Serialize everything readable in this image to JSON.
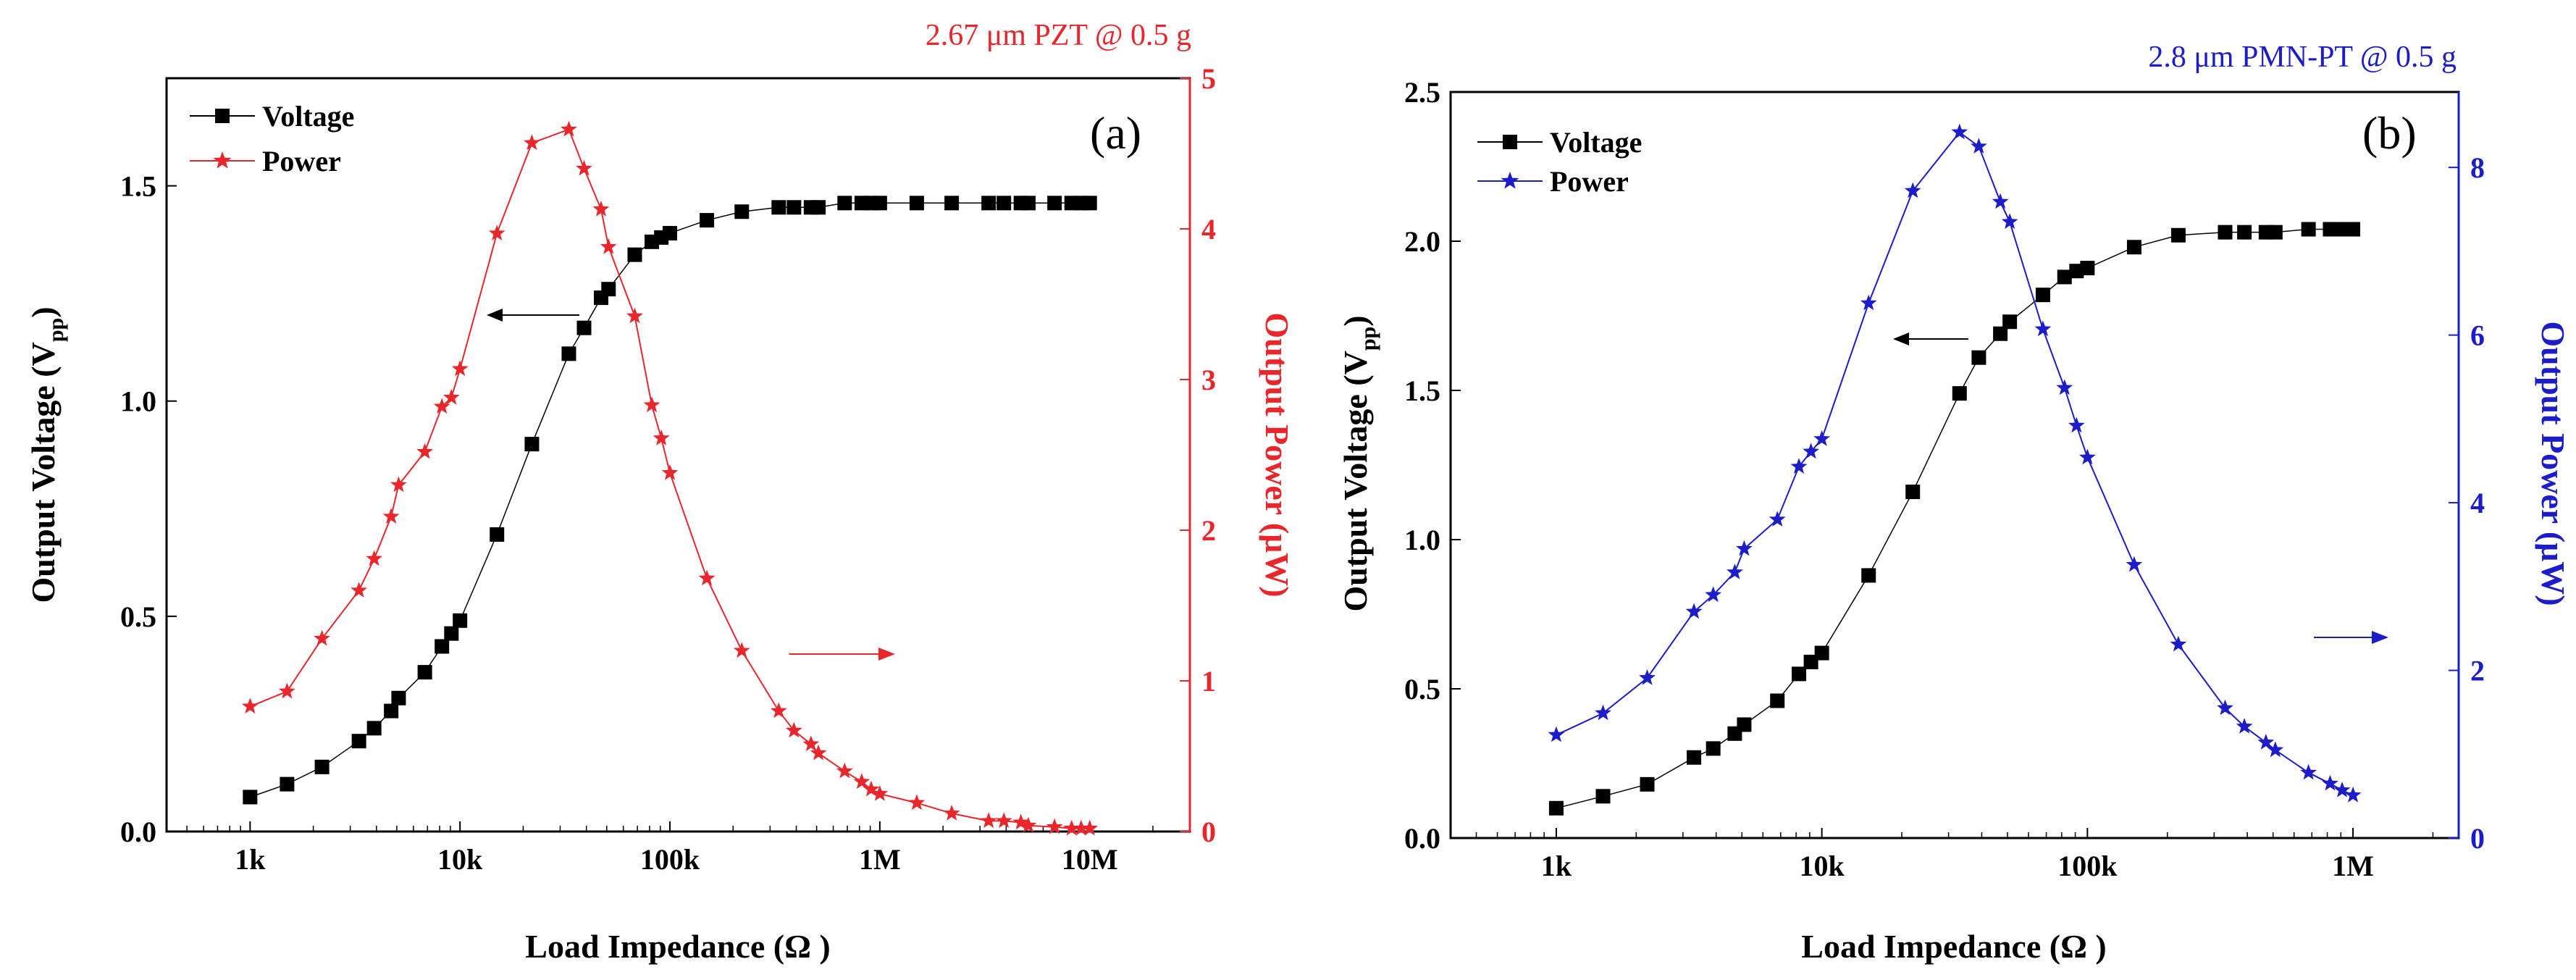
{
  "colors": {
    "voltage": "#000000",
    "power_a": "#e8262c",
    "power_b": "#1c1cc8"
  },
  "chart_data": [
    {
      "type": "line",
      "panel_label": "(a)",
      "title": "2.67 μm PZT @ 0.5 g",
      "xlabel": "Load Impedance (Ω )",
      "ylabel_left": "Output Voltage (V",
      "ylabel_left_sub": "pp",
      "ylabel_left_close": ")",
      "ylabel_right": "Output Power (μW)",
      "xscale": "log",
      "xlim": [
        400,
        30000000
      ],
      "ylim_left": [
        0,
        1.75
      ],
      "ylim_right": [
        0,
        5
      ],
      "x_ticks": [
        {
          "value": 1000,
          "label": "1k"
        },
        {
          "value": 10000,
          "label": "10k"
        },
        {
          "value": 100000,
          "label": "100k"
        },
        {
          "value": 1000000,
          "label": "1M"
        },
        {
          "value": 10000000,
          "label": "10M"
        }
      ],
      "y_ticks_left": [
        {
          "value": 0,
          "label": "0.0"
        },
        {
          "value": 0.5,
          "label": "0.5"
        },
        {
          "value": 1.0,
          "label": "1.0"
        },
        {
          "value": 1.5,
          "label": "1.5"
        }
      ],
      "y_ticks_right": [
        {
          "value": 0,
          "label": "0"
        },
        {
          "value": 1,
          "label": "1"
        },
        {
          "value": 2,
          "label": "2"
        },
        {
          "value": 3,
          "label": "3"
        },
        {
          "value": 4,
          "label": "4"
        },
        {
          "value": 5,
          "label": "5"
        }
      ],
      "legend": [
        {
          "label": "Voltage",
          "marker": "square",
          "series": "voltage"
        },
        {
          "label": "Power",
          "marker": "star",
          "series": "power"
        }
      ],
      "series": [
        {
          "name": "Voltage",
          "axis": "left",
          "marker": "square",
          "x": [
            1000,
            1500,
            2200,
            3300,
            3900,
            4700,
            5100,
            6800,
            8200,
            9100,
            10000,
            15000,
            22000,
            33000,
            39000,
            47000,
            51000,
            68000,
            82000,
            91000,
            100000,
            150000,
            220000,
            330000,
            390000,
            470000,
            510000,
            680000,
            820000,
            910000,
            1000000,
            1500000,
            2200000,
            3300000,
            3900000,
            4700000,
            5100000,
            6800000,
            8200000,
            9100000,
            10000000
          ],
          "y": [
            0.08,
            0.11,
            0.15,
            0.21,
            0.24,
            0.28,
            0.31,
            0.37,
            0.43,
            0.46,
            0.49,
            0.69,
            0.9,
            1.11,
            1.17,
            1.24,
            1.26,
            1.34,
            1.37,
            1.38,
            1.39,
            1.42,
            1.44,
            1.45,
            1.45,
            1.45,
            1.45,
            1.46,
            1.46,
            1.46,
            1.46,
            1.46,
            1.46,
            1.46,
            1.46,
            1.46,
            1.46,
            1.46,
            1.46,
            1.46,
            1.46
          ]
        },
        {
          "name": "Power",
          "axis": "right",
          "marker": "star",
          "x": [
            1000,
            1500,
            2200,
            3300,
            3900,
            4700,
            5100,
            6800,
            8200,
            9100,
            10000,
            15000,
            22000,
            33000,
            39000,
            47000,
            51000,
            68000,
            82000,
            91000,
            100000,
            150000,
            220000,
            330000,
            390000,
            470000,
            510000,
            680000,
            820000,
            910000,
            1000000,
            1500000,
            2200000,
            3300000,
            3900000,
            4700000,
            5100000,
            6800000,
            8200000,
            9100000,
            10000000
          ],
          "y": [
            0.83,
            0.93,
            1.28,
            1.6,
            1.81,
            2.09,
            2.3,
            2.52,
            2.82,
            2.88,
            3.07,
            3.97,
            4.57,
            4.66,
            4.4,
            4.13,
            3.88,
            3.42,
            2.83,
            2.61,
            2.38,
            1.68,
            1.2,
            0.8,
            0.67,
            0.58,
            0.52,
            0.4,
            0.33,
            0.28,
            0.25,
            0.19,
            0.12,
            0.07,
            0.07,
            0.06,
            0.04,
            0.03,
            0.02,
            0.02,
            0.02
          ]
        }
      ],
      "annotations": [
        {
          "type": "arrow",
          "direction": "left",
          "points_to": "voltage-axis"
        },
        {
          "type": "arrow",
          "direction": "right",
          "points_to": "power-axis"
        }
      ]
    },
    {
      "type": "line",
      "panel_label": "(b)",
      "title": "2.8 μm PMN-PT @ 0.5 g",
      "xlabel": "Load Impedance (Ω )",
      "ylabel_left": "Output Voltage (V",
      "ylabel_left_sub": "pp",
      "ylabel_left_close": ")",
      "ylabel_right": "Output Power (μW)",
      "xscale": "log",
      "xlim": [
        400,
        2500000
      ],
      "ylim_left": [
        0,
        2.5
      ],
      "ylim_right": [
        0,
        8.9
      ],
      "x_ticks": [
        {
          "value": 1000,
          "label": "1k"
        },
        {
          "value": 10000,
          "label": "10k"
        },
        {
          "value": 100000,
          "label": "100k"
        },
        {
          "value": 1000000,
          "label": "1M"
        }
      ],
      "y_ticks_left": [
        {
          "value": 0,
          "label": "0.0"
        },
        {
          "value": 0.5,
          "label": "0.5"
        },
        {
          "value": 1.0,
          "label": "1.0"
        },
        {
          "value": 1.5,
          "label": "1.5"
        },
        {
          "value": 2.0,
          "label": "2.0"
        },
        {
          "value": 2.5,
          "label": "2.5"
        }
      ],
      "y_ticks_right": [
        {
          "value": 0,
          "label": "0"
        },
        {
          "value": 2,
          "label": "2"
        },
        {
          "value": 4,
          "label": "4"
        },
        {
          "value": 6,
          "label": "6"
        },
        {
          "value": 8,
          "label": "8"
        }
      ],
      "legend": [
        {
          "label": "Voltage",
          "marker": "square",
          "series": "voltage"
        },
        {
          "label": "Power",
          "marker": "star",
          "series": "power"
        }
      ],
      "series": [
        {
          "name": "Voltage",
          "axis": "left",
          "marker": "square",
          "x": [
            1000,
            1500,
            2200,
            3300,
            3900,
            4700,
            5100,
            6800,
            8200,
            9100,
            10000,
            15000,
            22000,
            33000,
            39000,
            47000,
            51000,
            68000,
            82000,
            91000,
            100000,
            150000,
            220000,
            330000,
            390000,
            470000,
            510000,
            680000,
            820000,
            910000,
            1000000
          ],
          "y": [
            0.1,
            0.14,
            0.18,
            0.27,
            0.3,
            0.35,
            0.38,
            0.46,
            0.55,
            0.59,
            0.62,
            0.88,
            1.16,
            1.49,
            1.61,
            1.69,
            1.73,
            1.82,
            1.88,
            1.9,
            1.91,
            1.98,
            2.02,
            2.03,
            2.03,
            2.03,
            2.03,
            2.04,
            2.04,
            2.04,
            2.04
          ]
        },
        {
          "name": "Power",
          "axis": "right",
          "marker": "star",
          "x": [
            1000,
            1500,
            2200,
            3300,
            3900,
            4700,
            5100,
            6800,
            8200,
            9100,
            10000,
            15000,
            22000,
            33000,
            39000,
            47000,
            51000,
            68000,
            82000,
            91000,
            100000,
            150000,
            220000,
            330000,
            390000,
            470000,
            510000,
            680000,
            820000,
            910000,
            1000000
          ],
          "y": [
            1.23,
            1.49,
            1.91,
            2.7,
            2.9,
            3.17,
            3.45,
            3.8,
            4.43,
            4.61,
            4.76,
            6.38,
            7.72,
            8.42,
            8.25,
            7.59,
            7.35,
            6.07,
            5.37,
            4.92,
            4.54,
            3.26,
            2.31,
            1.55,
            1.33,
            1.14,
            1.05,
            0.78,
            0.65,
            0.57,
            0.51
          ]
        }
      ],
      "annotations": [
        {
          "type": "arrow",
          "direction": "left",
          "points_to": "voltage-axis"
        },
        {
          "type": "arrow",
          "direction": "right",
          "points_to": "power-axis"
        }
      ]
    }
  ]
}
